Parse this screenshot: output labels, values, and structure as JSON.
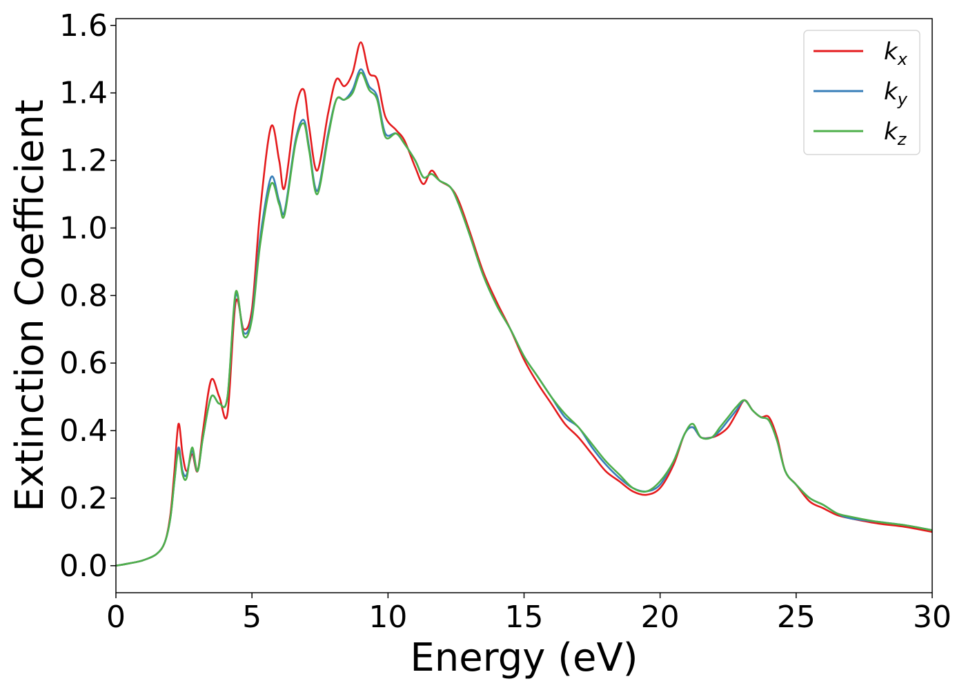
{
  "chart_data": {
    "type": "line",
    "xlabel": "Energy (eV)",
    "ylabel": "Extinction Coefficient",
    "xlim": [
      0,
      30
    ],
    "ylim": [
      -0.08,
      1.62
    ],
    "xticks": [
      0,
      5,
      10,
      15,
      20,
      25,
      30
    ],
    "xtick_labels": [
      "0",
      "5",
      "10",
      "15",
      "20",
      "25",
      "30"
    ],
    "yticks": [
      0.0,
      0.2,
      0.4,
      0.6,
      0.8,
      1.0,
      1.2,
      1.4,
      1.6
    ],
    "ytick_labels": [
      "0.0",
      "0.2",
      "0.4",
      "0.6",
      "0.8",
      "1.0",
      "1.2",
      "1.4",
      "1.6"
    ],
    "grid": false,
    "legend_position": "top-right",
    "series": [
      {
        "name": "k_x",
        "label_main": "k",
        "label_sub": "x",
        "color": "#e41a1c",
        "x": [
          0,
          0.5,
          1.0,
          1.5,
          1.8,
          2.0,
          2.15,
          2.3,
          2.45,
          2.6,
          2.8,
          3.0,
          3.2,
          3.5,
          3.8,
          4.1,
          4.4,
          4.7,
          5.0,
          5.3,
          5.7,
          6.0,
          6.2,
          6.6,
          6.9,
          7.1,
          7.4,
          7.8,
          8.1,
          8.4,
          8.7,
          9.0,
          9.3,
          9.6,
          9.9,
          10.3,
          10.6,
          11.0,
          11.3,
          11.6,
          11.9,
          12.3,
          12.6,
          13.0,
          13.5,
          14.0,
          14.5,
          15.0,
          15.5,
          16.0,
          16.5,
          17.0,
          17.5,
          18.0,
          18.5,
          19.0,
          19.5,
          20.0,
          20.5,
          20.9,
          21.2,
          21.5,
          21.9,
          22.2,
          22.5,
          22.8,
          23.1,
          23.4,
          23.7,
          24.0,
          24.3,
          24.6,
          25.0,
          25.5,
          26.0,
          26.5,
          27.0,
          28.0,
          29.0,
          30.0
        ],
        "y": [
          0.0,
          0.007,
          0.016,
          0.035,
          0.07,
          0.15,
          0.28,
          0.42,
          0.33,
          0.28,
          0.33,
          0.28,
          0.4,
          0.55,
          0.5,
          0.45,
          0.78,
          0.7,
          0.76,
          1.05,
          1.3,
          1.2,
          1.12,
          1.35,
          1.41,
          1.3,
          1.17,
          1.34,
          1.44,
          1.42,
          1.46,
          1.55,
          1.46,
          1.44,
          1.33,
          1.29,
          1.26,
          1.18,
          1.13,
          1.17,
          1.14,
          1.12,
          1.08,
          0.99,
          0.87,
          0.78,
          0.7,
          0.61,
          0.54,
          0.48,
          0.42,
          0.38,
          0.33,
          0.28,
          0.25,
          0.22,
          0.21,
          0.23,
          0.3,
          0.39,
          0.41,
          0.38,
          0.38,
          0.39,
          0.41,
          0.45,
          0.49,
          0.46,
          0.44,
          0.44,
          0.38,
          0.28,
          0.24,
          0.19,
          0.17,
          0.15,
          0.14,
          0.125,
          0.115,
          0.1
        ]
      },
      {
        "name": "k_y",
        "label_main": "k",
        "label_sub": "y",
        "color": "#377eb8",
        "x": [
          0,
          0.5,
          1.0,
          1.5,
          1.8,
          2.0,
          2.15,
          2.3,
          2.45,
          2.6,
          2.8,
          3.0,
          3.2,
          3.5,
          3.8,
          4.1,
          4.4,
          4.7,
          5.0,
          5.3,
          5.7,
          6.0,
          6.2,
          6.6,
          6.9,
          7.1,
          7.4,
          7.8,
          8.1,
          8.4,
          8.7,
          9.0,
          9.3,
          9.6,
          9.9,
          10.3,
          10.6,
          11.0,
          11.3,
          11.6,
          11.9,
          12.3,
          12.6,
          13.0,
          13.5,
          14.0,
          14.5,
          15.0,
          15.5,
          16.0,
          16.5,
          17.0,
          17.5,
          18.0,
          18.5,
          19.0,
          19.5,
          20.0,
          20.5,
          20.9,
          21.2,
          21.5,
          21.9,
          22.2,
          22.5,
          22.8,
          23.1,
          23.4,
          23.7,
          24.0,
          24.3,
          24.6,
          25.0,
          25.5,
          26.0,
          26.5,
          27.0,
          28.0,
          29.0,
          30.0
        ],
        "y": [
          0.0,
          0.007,
          0.016,
          0.035,
          0.07,
          0.14,
          0.25,
          0.35,
          0.28,
          0.27,
          0.34,
          0.28,
          0.38,
          0.5,
          0.48,
          0.5,
          0.8,
          0.69,
          0.74,
          0.97,
          1.15,
          1.08,
          1.05,
          1.26,
          1.32,
          1.24,
          1.11,
          1.28,
          1.38,
          1.38,
          1.41,
          1.47,
          1.42,
          1.39,
          1.28,
          1.28,
          1.25,
          1.2,
          1.15,
          1.16,
          1.14,
          1.12,
          1.07,
          0.98,
          0.86,
          0.77,
          0.7,
          0.62,
          0.56,
          0.5,
          0.44,
          0.41,
          0.35,
          0.3,
          0.26,
          0.23,
          0.22,
          0.24,
          0.31,
          0.39,
          0.41,
          0.38,
          0.38,
          0.4,
          0.43,
          0.46,
          0.49,
          0.46,
          0.44,
          0.43,
          0.37,
          0.28,
          0.24,
          0.2,
          0.18,
          0.155,
          0.14,
          0.13,
          0.12,
          0.105
        ]
      },
      {
        "name": "k_z",
        "label_main": "k",
        "label_sub": "z",
        "color": "#4daf4a",
        "x": [
          0,
          0.5,
          1.0,
          1.5,
          1.8,
          2.0,
          2.15,
          2.3,
          2.45,
          2.6,
          2.8,
          3.0,
          3.2,
          3.5,
          3.8,
          4.1,
          4.4,
          4.7,
          5.0,
          5.3,
          5.7,
          6.0,
          6.2,
          6.6,
          6.9,
          7.1,
          7.4,
          7.8,
          8.1,
          8.4,
          8.7,
          9.0,
          9.3,
          9.6,
          9.9,
          10.3,
          10.6,
          11.0,
          11.3,
          11.6,
          11.9,
          12.3,
          12.6,
          13.0,
          13.5,
          14.0,
          14.5,
          15.0,
          15.5,
          16.0,
          16.5,
          17.0,
          17.5,
          18.0,
          18.5,
          19.0,
          19.5,
          20.0,
          20.5,
          20.9,
          21.2,
          21.5,
          21.9,
          22.2,
          22.5,
          22.8,
          23.1,
          23.4,
          23.7,
          24.0,
          24.3,
          24.6,
          25.0,
          25.5,
          26.0,
          26.5,
          27.0,
          28.0,
          29.0,
          30.0
        ],
        "y": [
          0.0,
          0.007,
          0.016,
          0.035,
          0.07,
          0.14,
          0.25,
          0.34,
          0.27,
          0.26,
          0.35,
          0.28,
          0.38,
          0.5,
          0.48,
          0.5,
          0.81,
          0.68,
          0.73,
          0.95,
          1.13,
          1.07,
          1.04,
          1.25,
          1.31,
          1.23,
          1.1,
          1.27,
          1.38,
          1.38,
          1.4,
          1.46,
          1.41,
          1.38,
          1.27,
          1.28,
          1.25,
          1.2,
          1.15,
          1.16,
          1.14,
          1.12,
          1.07,
          0.98,
          0.86,
          0.77,
          0.7,
          0.62,
          0.56,
          0.5,
          0.45,
          0.41,
          0.36,
          0.31,
          0.27,
          0.23,
          0.22,
          0.25,
          0.31,
          0.39,
          0.42,
          0.38,
          0.38,
          0.41,
          0.44,
          0.47,
          0.49,
          0.46,
          0.44,
          0.43,
          0.37,
          0.28,
          0.24,
          0.2,
          0.18,
          0.155,
          0.145,
          0.13,
          0.12,
          0.105
        ]
      }
    ]
  }
}
